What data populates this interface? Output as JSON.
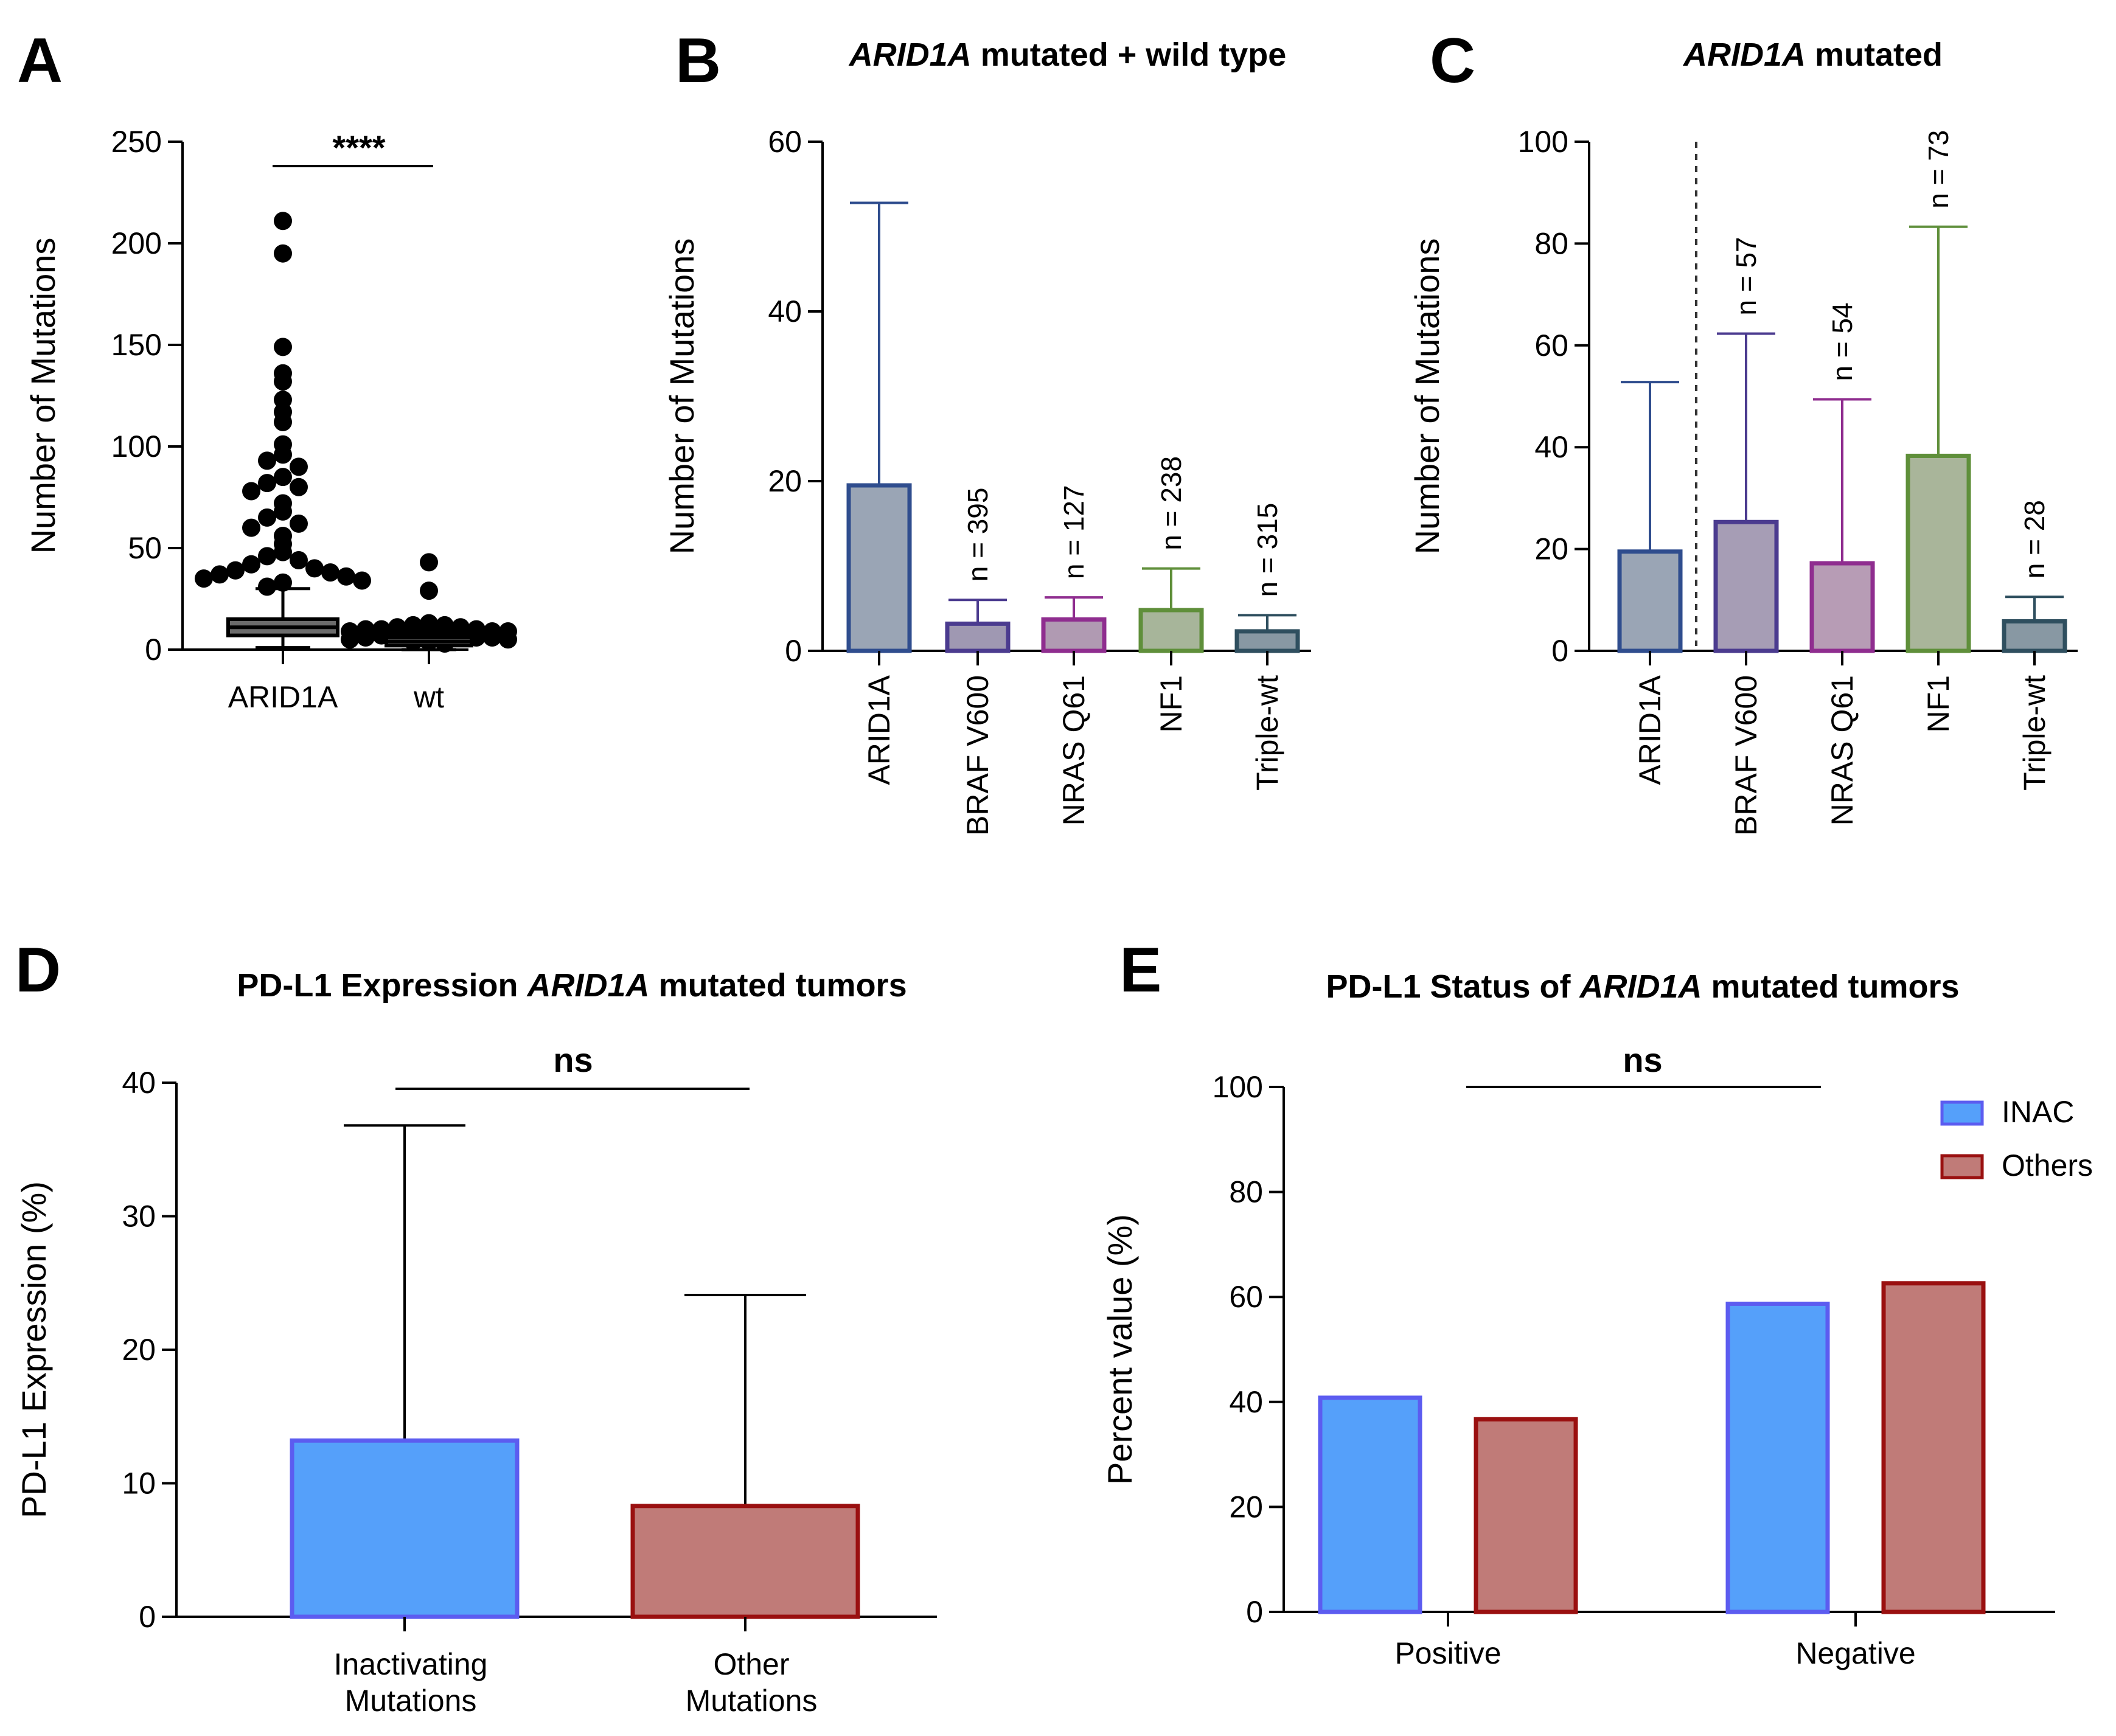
{
  "chart_data": [
    {
      "panel": "A",
      "type": "scatter",
      "title": "",
      "ylabel": "Number of Mutations",
      "ylim": [
        0,
        250
      ],
      "yticks": [
        0,
        50,
        100,
        150,
        200,
        250
      ],
      "categories": [
        "ARID1A",
        "wt"
      ],
      "significance": "****",
      "colors": {
        "box_fill": "#6b6b6b",
        "points": "#000000"
      },
      "groups": [
        {
          "name": "ARID1A",
          "box": {
            "q1": 7,
            "median": 11,
            "q3": 15,
            "whisker_low": 1,
            "whisker_high": 30
          },
          "points": [
            211,
            195,
            149,
            136,
            132,
            123,
            117,
            112,
            101,
            96,
            93,
            90,
            85,
            82,
            80,
            78,
            72,
            68,
            65,
            62,
            60,
            56,
            52,
            48,
            46,
            44,
            42,
            40,
            39,
            38,
            37,
            36,
            35,
            34,
            33,
            31
          ]
        },
        {
          "name": "wt",
          "box": {
            "q1": 2,
            "median": 4,
            "q3": 6,
            "whisker_low": 0,
            "whisker_high": 8
          },
          "points": [
            43,
            29,
            13,
            12,
            12,
            11,
            11,
            10,
            10,
            10,
            9,
            9,
            9,
            8,
            8,
            8,
            7,
            7,
            7,
            6,
            6,
            6,
            5,
            5,
            4,
            4,
            3
          ]
        }
      ]
    },
    {
      "panel": "B",
      "type": "bar",
      "title_italic": "ARID1A",
      "title_rest": " mutated + wild type",
      "ylabel": "Number of Mutations",
      "ylim": [
        0,
        60
      ],
      "yticks": [
        0,
        20,
        40,
        60
      ],
      "categories": [
        "ARID1A",
        "BRAF V600",
        "NRAS Q61",
        "NF1",
        "Triple-wt"
      ],
      "values": [
        19.5,
        3.2,
        3.7,
        4.8,
        2.3
      ],
      "errors": [
        52.8,
        6.0,
        6.3,
        9.7,
        4.2
      ],
      "annotations": [
        "",
        "n = 395",
        "n = 127",
        "n = 238",
        "n = 315"
      ],
      "fill_colors": [
        "#9aa5b5",
        "#9f98b2",
        "#b09ab2",
        "#a7b59a",
        "#8898a3"
      ],
      "stroke_colors": [
        "#2f4d8e",
        "#4b3b8f",
        "#8f2d8f",
        "#5f8f3a",
        "#2f4f5f"
      ]
    },
    {
      "panel": "C",
      "type": "bar",
      "title_italic": "ARID1A",
      "title_rest": " mutated",
      "ylabel": "Number of Mutations",
      "ylim": [
        0,
        100
      ],
      "yticks": [
        0,
        20,
        40,
        60,
        80,
        100
      ],
      "categories": [
        "ARID1A",
        "BRAF V600",
        "NRAS Q61",
        "NF1",
        "Triple-wt"
      ],
      "values": [
        19.5,
        25.3,
        17.2,
        38.3,
        5.8
      ],
      "errors": [
        52.8,
        62.3,
        49.4,
        83.3,
        10.6
      ],
      "annotations": [
        "",
        "n = 57",
        "n = 54",
        "n = 73",
        "n = 28"
      ],
      "fill_colors": [
        "#9aa5b5",
        "#a69db5",
        "#b79cb5",
        "#a9b59a",
        "#8898a3"
      ],
      "stroke_colors": [
        "#2f4d8e",
        "#4b3b8f",
        "#8f2d8f",
        "#5f8f3a",
        "#2f4f5f"
      ]
    },
    {
      "panel": "D",
      "type": "bar",
      "title_pre": "PD-L1 Expression ",
      "title_italic": "ARID1A",
      "title_rest": " mutated tumors",
      "ylabel": "PD-L1 Expression (%)",
      "ylim": [
        0,
        40
      ],
      "yticks": [
        0,
        10,
        20,
        30,
        40
      ],
      "categories": [
        [
          "Inactivating",
          "Mutations"
        ],
        [
          "Other",
          "Mutations"
        ]
      ],
      "values": [
        13.2,
        8.3
      ],
      "errors": [
        36.8,
        24.1
      ],
      "significance": "ns",
      "fill_colors": [
        "#55a0fa",
        "#c07b78"
      ],
      "stroke_colors": [
        "#5c5cf0",
        "#9a1010"
      ]
    },
    {
      "panel": "E",
      "type": "bar",
      "title_pre": "PD-L1 Status of ",
      "title_italic": "ARID1A",
      "title_rest": " mutated tumors",
      "ylabel": "Percent value (%)",
      "ylim": [
        0,
        100
      ],
      "yticks": [
        0,
        20,
        40,
        60,
        80,
        100
      ],
      "categories": [
        "Positive",
        "Negative"
      ],
      "series": [
        {
          "name": "INAC",
          "values": [
            40.8,
            58.7
          ],
          "fill": "#55a0fa",
          "stroke": "#5c5cf0"
        },
        {
          "name": "Others",
          "values": [
            36.7,
            62.6
          ],
          "fill": "#c07b78",
          "stroke": "#9a1010"
        }
      ],
      "legend": "top-right",
      "significance": "ns"
    }
  ]
}
